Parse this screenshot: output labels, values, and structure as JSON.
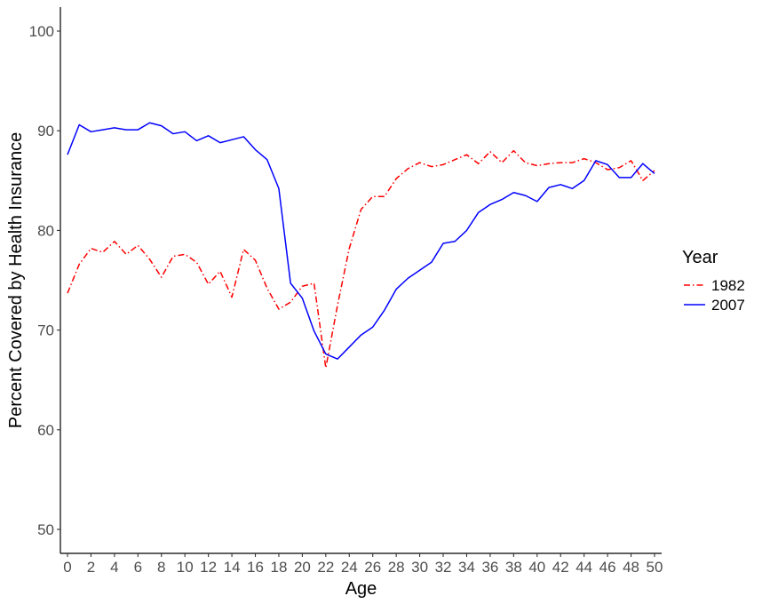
{
  "chart_data": {
    "type": "line",
    "xlabel": "Age",
    "ylabel": "Percent Covered by Health Insurance",
    "xlim": [
      0,
      50
    ],
    "ylim": [
      50,
      100
    ],
    "x_ticks": [
      0,
      2,
      4,
      6,
      8,
      10,
      12,
      14,
      16,
      18,
      20,
      22,
      24,
      26,
      28,
      30,
      32,
      34,
      36,
      38,
      40,
      42,
      44,
      46,
      48,
      50
    ],
    "y_ticks": [
      50,
      60,
      70,
      80,
      90,
      100
    ],
    "grid": false,
    "legend": {
      "title": "Year",
      "position": "right"
    },
    "x": [
      0,
      1,
      2,
      3,
      4,
      5,
      6,
      7,
      8,
      9,
      10,
      11,
      12,
      13,
      14,
      15,
      16,
      17,
      18,
      19,
      20,
      21,
      22,
      23,
      24,
      25,
      26,
      27,
      28,
      29,
      30,
      31,
      32,
      33,
      34,
      35,
      36,
      37,
      38,
      39,
      40,
      41,
      42,
      43,
      44,
      45,
      46,
      47,
      48,
      49,
      50
    ],
    "series": [
      {
        "name": "1982",
        "color": "#ff0000",
        "dash": "dotdash",
        "values": [
          73.7,
          76.6,
          78.2,
          77.8,
          78.9,
          77.6,
          78.5,
          77.1,
          75.3,
          77.4,
          77.6,
          76.8,
          74.6,
          75.9,
          73.3,
          78.1,
          77.0,
          74.2,
          72.1,
          72.8,
          74.4,
          74.7,
          66.2,
          72.5,
          78.2,
          82.1,
          83.4,
          83.4,
          85.2,
          86.2,
          86.8,
          86.4,
          86.6,
          87.1,
          87.6,
          86.7,
          87.9,
          86.8,
          88.0,
          86.8,
          86.5,
          86.7,
          86.8,
          86.8,
          87.2,
          86.8,
          86.1,
          86.3,
          87.0,
          85.0,
          86.0
        ]
      },
      {
        "name": "2007",
        "color": "#0000ff",
        "dash": "solid",
        "values": [
          87.6,
          90.6,
          89.9,
          90.1,
          90.3,
          90.1,
          90.1,
          90.8,
          90.5,
          89.7,
          89.9,
          89.0,
          89.5,
          88.8,
          89.1,
          89.4,
          88.1,
          87.1,
          84.2,
          74.7,
          73.2,
          69.9,
          67.6,
          67.1,
          68.3,
          69.5,
          70.3,
          72.0,
          74.1,
          75.2,
          76.0,
          76.8,
          78.7,
          78.9,
          80.0,
          81.8,
          82.6,
          83.1,
          83.8,
          83.5,
          82.9,
          84.3,
          84.6,
          84.2,
          85.0,
          87.0,
          86.6,
          85.3,
          85.3,
          86.7,
          85.7
        ]
      }
    ]
  }
}
